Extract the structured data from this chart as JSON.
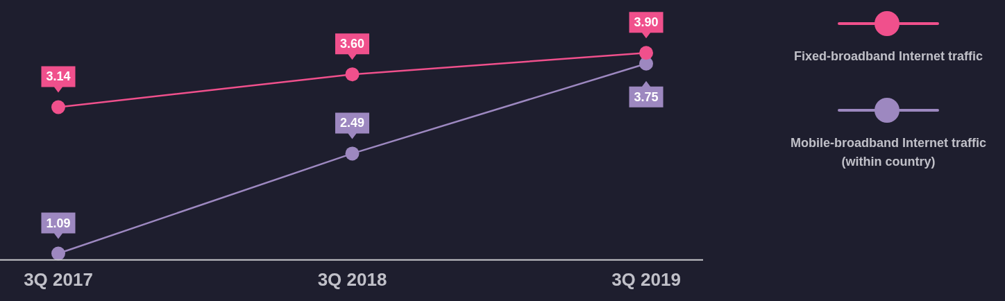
{
  "chart_data": {
    "type": "line",
    "categories": [
      "3Q 2017",
      "3Q 2018",
      "3Q 2019"
    ],
    "series": [
      {
        "name": "Fixed-broadband Internet traffic",
        "color": "#f0508c",
        "values": [
          3.14,
          3.6,
          3.9
        ],
        "value_labels": [
          "3.14",
          "3.60",
          "3.90"
        ]
      },
      {
        "name": "Mobile-broadband Internet traffic\n(within country)",
        "color": "#9d88c0",
        "values": [
          1.09,
          2.49,
          3.75
        ],
        "value_labels": [
          "1.09",
          "2.49",
          "3.75"
        ]
      }
    ],
    "tick_labels": "x",
    "legend": "right",
    "marker": "circle",
    "line_style": "solid"
  }
}
